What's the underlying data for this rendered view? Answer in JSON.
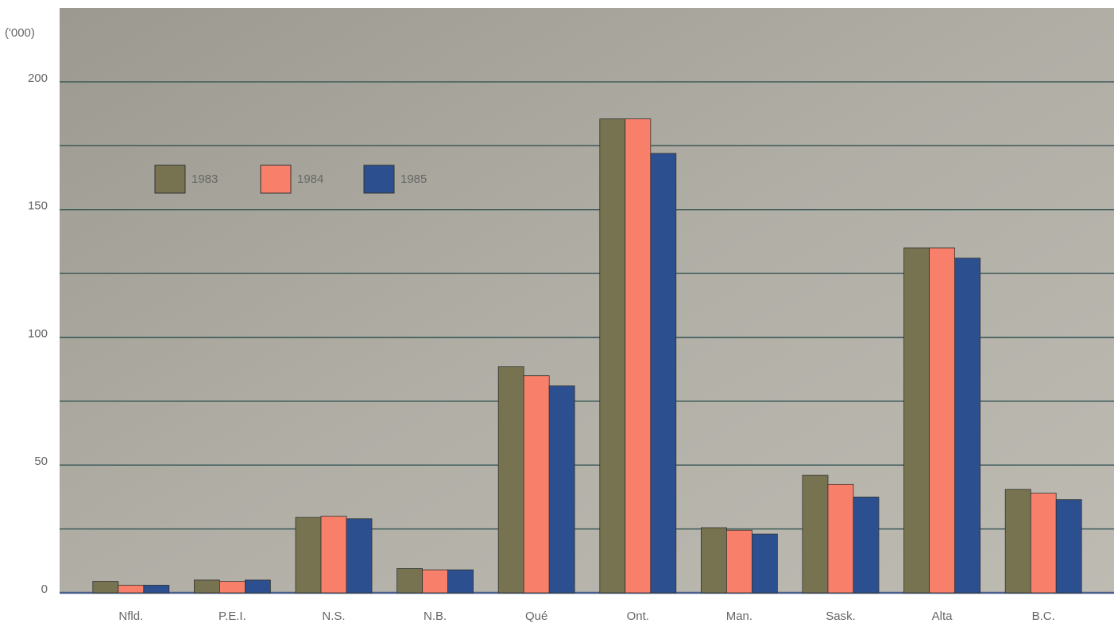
{
  "chart_data": {
    "type": "bar",
    "unit_label": "('000)",
    "categories": [
      "Nfld.",
      "P.E.I.",
      "N.S.",
      "N.B.",
      "Qué",
      "Ont.",
      "Man.",
      "Sask.",
      "Alta",
      "B.C."
    ],
    "series": [
      {
        "name": "1983",
        "color": "#77724f",
        "values": [
          4.5,
          5,
          29.5,
          9.5,
          88.5,
          185.5,
          25.5,
          46,
          135,
          40.5
        ]
      },
      {
        "name": "1984",
        "color": "#f8806b",
        "values": [
          3,
          4.5,
          30,
          9,
          85,
          185.5,
          24.5,
          42.5,
          135,
          39
        ]
      },
      {
        "name": "1985",
        "color": "#2c4f8f",
        "values": [
          3,
          5,
          29,
          9,
          81,
          172,
          23,
          37.5,
          131,
          36.5
        ]
      }
    ],
    "ylim": [
      0,
      225
    ],
    "yticks": [
      0,
      50,
      100,
      150,
      200
    ],
    "minor_yticks": [
      25,
      75,
      125,
      175
    ],
    "grid": true
  }
}
